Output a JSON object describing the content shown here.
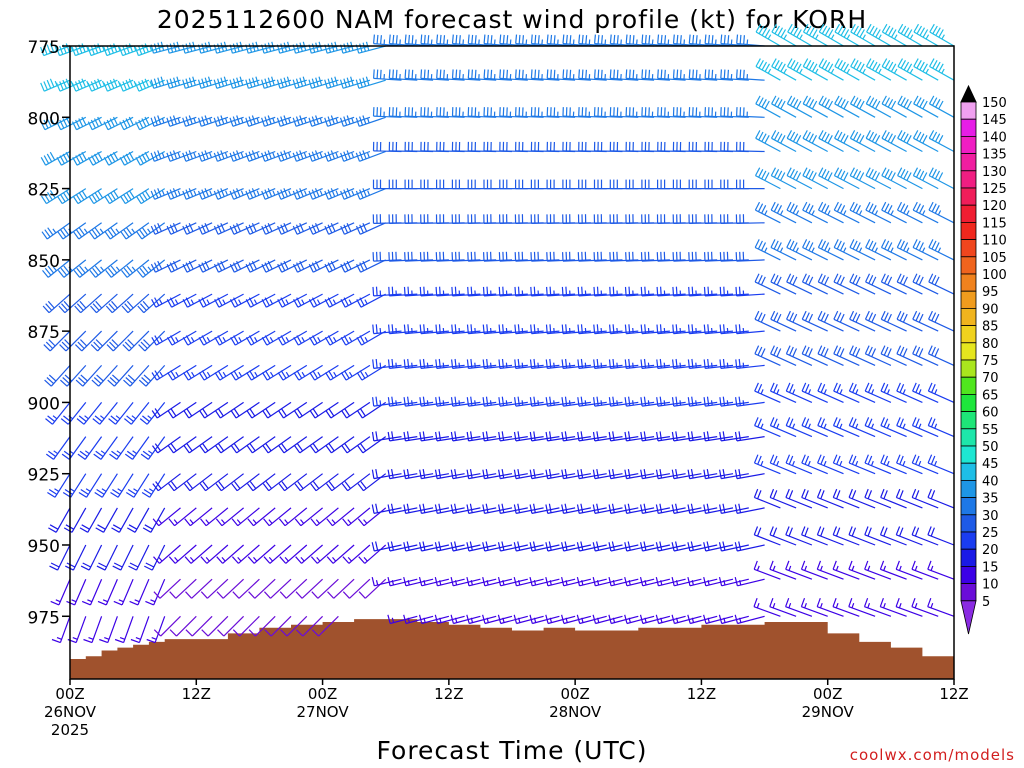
{
  "chart_data": {
    "type": "wind-profile",
    "title": "2025112600 NAM forecast wind profile (kt) for KORH",
    "xlabel": "Forecast Time (UTC)",
    "ylabel": "",
    "credit": "coolwx.com/models",
    "x_hours_range": [
      0,
      84
    ],
    "y_range_hpa": [
      775,
      997
    ],
    "y_ticks": [
      775,
      800,
      825,
      850,
      875,
      900,
      925,
      950,
      975
    ],
    "x_ticks": [
      {
        "hour": 0,
        "lines": [
          "00Z",
          "26NOV",
          "2025"
        ]
      },
      {
        "hour": 12,
        "lines": [
          "12Z"
        ]
      },
      {
        "hour": 24,
        "lines": [
          "00Z",
          "27NOV"
        ]
      },
      {
        "hour": 36,
        "lines": [
          "12Z"
        ]
      },
      {
        "hour": 48,
        "lines": [
          "00Z",
          "28NOV"
        ]
      },
      {
        "hour": 60,
        "lines": [
          "12Z"
        ]
      },
      {
        "hour": 72,
        "lines": [
          "00Z",
          "29NOV"
        ]
      },
      {
        "hour": 84,
        "lines": [
          "12Z"
        ]
      }
    ],
    "pressure_levels": [
      775,
      787,
      800,
      812,
      825,
      837,
      850,
      862,
      875,
      887,
      900,
      912,
      925,
      937,
      950,
      962,
      975
    ],
    "wind_speed_legend": {
      "unit": "kt",
      "levels": [
        5,
        10,
        15,
        20,
        25,
        30,
        35,
        40,
        45,
        50,
        55,
        60,
        65,
        70,
        75,
        80,
        85,
        90,
        95,
        100,
        105,
        110,
        115,
        120,
        125,
        130,
        135,
        140,
        145,
        150
      ],
      "colors": [
        "#8a2be2",
        "#6a0dd8",
        "#3c00e6",
        "#1a1ae6",
        "#1a3cf0",
        "#1e5ae6",
        "#1e78e6",
        "#1e96e6",
        "#1ebee6",
        "#1ee6d2",
        "#1ee6aa",
        "#1ee678",
        "#1ee63c",
        "#50e61e",
        "#aae61e",
        "#e6e61e",
        "#f0d21e",
        "#f0b41e",
        "#f09c1e",
        "#f0821e",
        "#f0641e",
        "#f0461e",
        "#f0281e",
        "#f01e32",
        "#f01e5a",
        "#f01e82",
        "#f01ea0",
        "#f01ec3",
        "#e61ee6",
        "#f0a0f0"
      ]
    },
    "terrain_surface_hpa": [
      {
        "hour": 0,
        "p": 990
      },
      {
        "hour": 1.5,
        "p": 989
      },
      {
        "hour": 3,
        "p": 987
      },
      {
        "hour": 4.5,
        "p": 986
      },
      {
        "hour": 6,
        "p": 985
      },
      {
        "hour": 7.5,
        "p": 984
      },
      {
        "hour": 9,
        "p": 983
      },
      {
        "hour": 12,
        "p": 983
      },
      {
        "hour": 15,
        "p": 981
      },
      {
        "hour": 18,
        "p": 979
      },
      {
        "hour": 21,
        "p": 978
      },
      {
        "hour": 24,
        "p": 977
      },
      {
        "hour": 27,
        "p": 976
      },
      {
        "hour": 30,
        "p": 976
      },
      {
        "hour": 33,
        "p": 977
      },
      {
        "hour": 36,
        "p": 978
      },
      {
        "hour": 39,
        "p": 979
      },
      {
        "hour": 42,
        "p": 980
      },
      {
        "hour": 45,
        "p": 979
      },
      {
        "hour": 48,
        "p": 980
      },
      {
        "hour": 51,
        "p": 980
      },
      {
        "hour": 54,
        "p": 979
      },
      {
        "hour": 57,
        "p": 979
      },
      {
        "hour": 60,
        "p": 978
      },
      {
        "hour": 63,
        "p": 978
      },
      {
        "hour": 66,
        "p": 977
      },
      {
        "hour": 69,
        "p": 977
      },
      {
        "hour": 72,
        "p": 981
      },
      {
        "hour": 75,
        "p": 984
      },
      {
        "hour": 78,
        "p": 986
      },
      {
        "hour": 81,
        "p": 989
      },
      {
        "hour": 84,
        "p": 991
      }
    ],
    "wind_hours": [
      0,
      1.5,
      3,
      4.5,
      6,
      7.5,
      9,
      10.5,
      12,
      13.5,
      15,
      16.5,
      18,
      19.5,
      21,
      22.5,
      24,
      25.5,
      27,
      28.5,
      30,
      31.5,
      33,
      34.5,
      36,
      37.5,
      39,
      40.5,
      42,
      43.5,
      45,
      46.5,
      48,
      49.5,
      51,
      52.5,
      54,
      55.5,
      57,
      58.5,
      60,
      61.5,
      63,
      64.5,
      66,
      67.5,
      69,
      70.5,
      72,
      73.5,
      75,
      76.5,
      78,
      79.5,
      81,
      82.5,
      84
    ],
    "wind_regimes": [
      {
        "from_hour": 0,
        "to_hour": 9,
        "direction_deg_top": 250,
        "direction_deg_bottom": 200,
        "speed_kt_top": 45,
        "speed_kt_bottom": 15
      },
      {
        "from_hour": 9,
        "to_hour": 30,
        "direction_deg_top": 255,
        "direction_deg_bottom": 225,
        "speed_kt_top": 40,
        "speed_kt_bottom": 10
      },
      {
        "from_hour": 30,
        "to_hour": 66,
        "direction_deg_top": 275,
        "direction_deg_bottom": 255,
        "speed_kt_top": 35,
        "speed_kt_bottom": 15
      },
      {
        "from_hour": 66,
        "to_hour": 84,
        "direction_deg_top": 300,
        "direction_deg_bottom": 290,
        "speed_kt_top": 45,
        "speed_kt_bottom": 15
      }
    ]
  }
}
